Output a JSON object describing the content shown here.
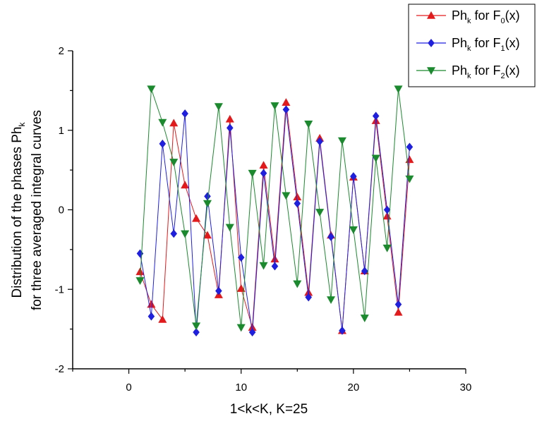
{
  "chart_data": {
    "type": "line",
    "title": "",
    "xlabel": "1<k<K, K=25",
    "ylabel_line1": "Distribution of the phases Ph",
    "ylabel_line1_sub": "k",
    "ylabel_line2": "for three averaged integral curves",
    "xlim": [
      -5,
      30
    ],
    "ylim": [
      -2,
      2
    ],
    "xticks": [
      0,
      10,
      20,
      30
    ],
    "yticks": [
      -2,
      -1,
      0,
      1,
      2
    ],
    "grid": false,
    "legend_position": "top-right",
    "x": [
      1,
      2,
      3,
      4,
      5,
      6,
      7,
      8,
      9,
      10,
      11,
      12,
      13,
      14,
      15,
      16,
      17,
      18,
      19,
      20,
      21,
      22,
      23,
      24,
      25
    ],
    "series": [
      {
        "name": "Ph_k for F_0(x)",
        "legend": {
          "main": "Ph",
          "sub": "k",
          "mid": " for F",
          "sub2": "0",
          "tail": "(x)"
        },
        "color": "#e31a1c",
        "marker": "triangle-up",
        "values": [
          -0.78,
          -1.19,
          -1.38,
          1.09,
          0.31,
          -0.11,
          -0.32,
          -1.07,
          1.14,
          -0.99,
          -1.48,
          0.56,
          -0.62,
          1.35,
          0.16,
          -1.04,
          0.9,
          -0.32,
          -1.52,
          0.41,
          -0.77,
          1.12,
          -0.08,
          -1.29,
          0.63
        ]
      },
      {
        "name": "Ph_k for F_1(x)",
        "legend": {
          "main": "Ph",
          "sub": "k",
          "mid": " for F",
          "sub2": "1",
          "tail": "(x)"
        },
        "color": "#1f1fe0",
        "marker": "diamond",
        "values": [
          -0.55,
          -1.34,
          0.83,
          -0.3,
          1.21,
          -1.54,
          0.17,
          -1.02,
          1.03,
          -0.6,
          -1.54,
          0.46,
          -0.71,
          1.26,
          0.08,
          -1.1,
          0.86,
          -0.34,
          -1.52,
          0.42,
          -0.77,
          1.18,
          0.0,
          -1.19,
          0.79
        ]
      },
      {
        "name": "Ph_k for F_2(x)",
        "legend": {
          "main": "Ph",
          "sub": "k",
          "mid": " for F",
          "sub2": "2",
          "tail": "(x)"
        },
        "color": "#1b8a2e",
        "marker": "triangle-down",
        "values": [
          -0.89,
          1.52,
          1.1,
          0.6,
          -0.3,
          -1.46,
          0.08,
          1.3,
          -0.22,
          -1.48,
          0.46,
          -0.7,
          1.31,
          0.18,
          -0.93,
          1.08,
          -0.03,
          -1.13,
          0.87,
          -0.25,
          -1.36,
          0.65,
          -0.48,
          1.52,
          0.39
        ]
      }
    ]
  }
}
